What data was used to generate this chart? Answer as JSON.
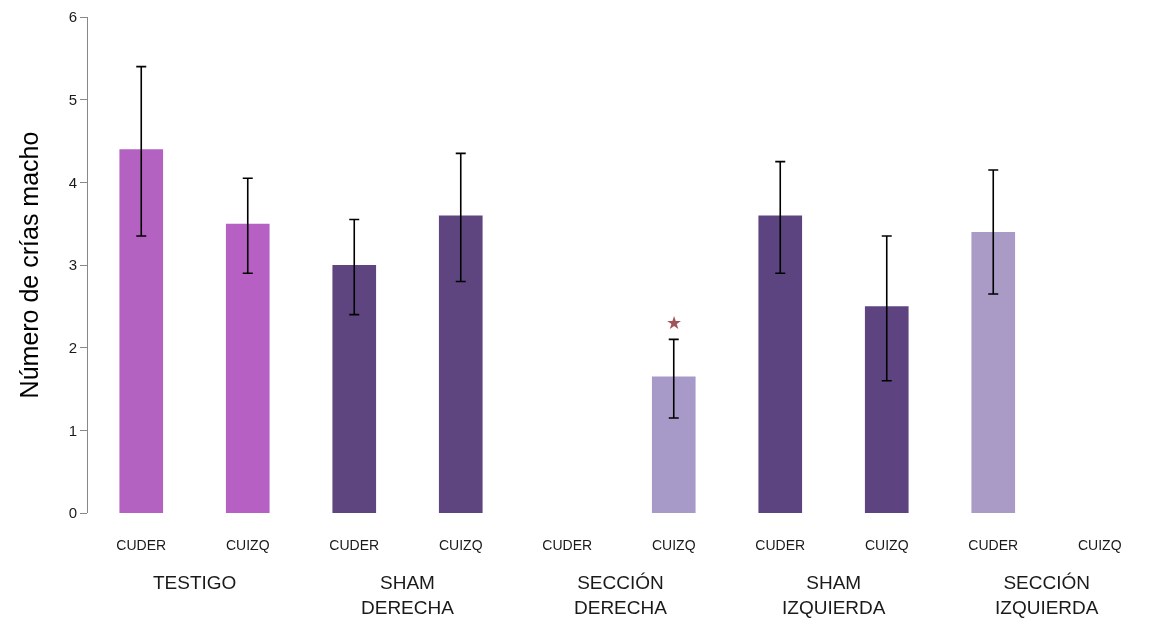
{
  "chart_data": {
    "type": "bar",
    "ylabel": "Número de crías macho",
    "categories": [
      "CUDER",
      "CUIZQ",
      "CUDER",
      "CUIZQ",
      "CUDER",
      "CUIZQ",
      "CUDER",
      "CUIZQ",
      "CUDER",
      "CUIZQ"
    ],
    "values": [
      4.4,
      3.5,
      3.0,
      3.6,
      null,
      1.65,
      3.6,
      2.5,
      3.4,
      null
    ],
    "colors": [
      "#b462c2",
      "#b660c4",
      "#5f4580",
      "#5e4580",
      null,
      "#a89ac8",
      "#5c4480",
      "#5d4480",
      "#a99bc6",
      null
    ],
    "errors": [
      [
        3.35,
        5.4
      ],
      [
        2.9,
        4.05
      ],
      [
        2.4,
        3.55
      ],
      [
        2.8,
        4.35
      ],
      null,
      [
        1.15,
        2.1
      ],
      [
        2.9,
        4.25
      ],
      [
        1.6,
        3.35
      ],
      [
        2.65,
        4.15
      ],
      null
    ],
    "value_labels": [
      null,
      null,
      null,
      null,
      null,
      "★",
      null,
      null,
      null,
      null
    ],
    "ylim": [
      0,
      6
    ],
    "yticks": [
      0,
      1,
      2,
      3,
      4,
      5,
      6
    ],
    "annotations": [
      "TESTIGO",
      "SHAM\nDERECHA",
      "SECCIÓN\nDERECHA",
      "SHAM\nIZQUIERDA",
      "SECCIÓN\nIZQUIERDA"
    ]
  }
}
